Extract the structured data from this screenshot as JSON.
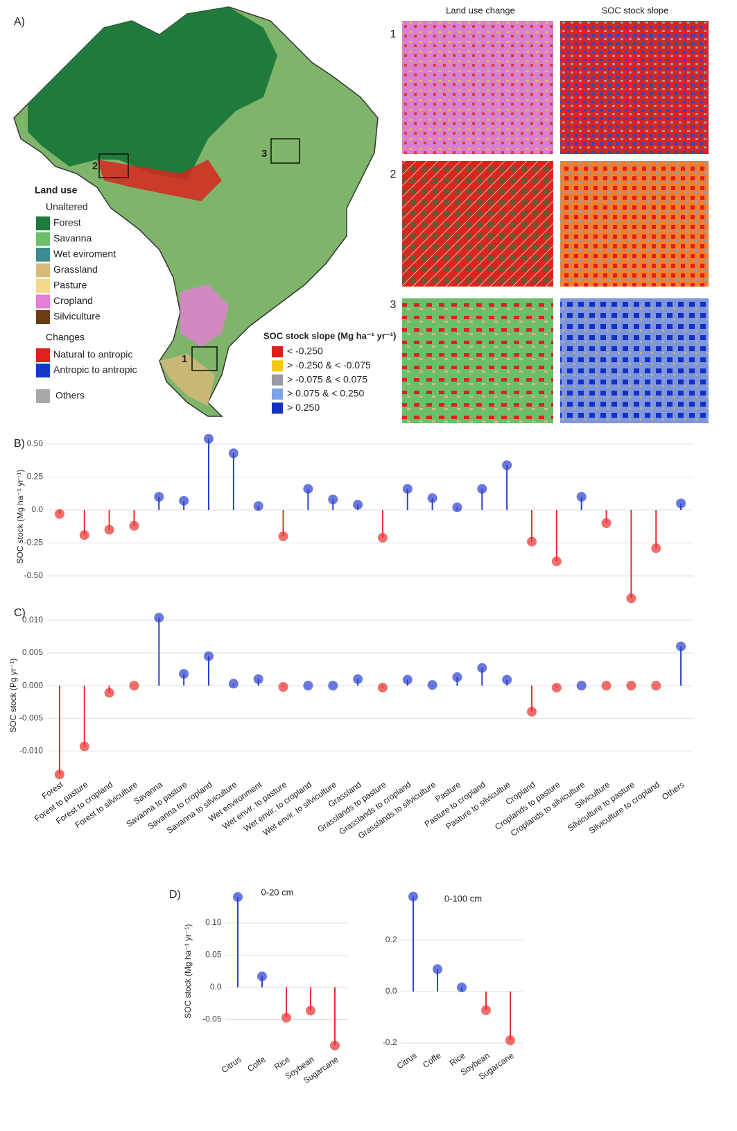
{
  "panel_a": {
    "label": "A)",
    "column_headers": [
      "Land use change",
      "SOC stock slope"
    ],
    "row_numbers": [
      "1",
      "2",
      "3"
    ],
    "map_boxes": [
      "1",
      "2",
      "3"
    ],
    "land_use_title": "Land use",
    "unaltered_title": "Unaltered",
    "unaltered": [
      {
        "label": "Forest",
        "color": "#1f7a3c"
      },
      {
        "label": "Savanna",
        "color": "#6cbf6a"
      },
      {
        "label": "Wet eviroment",
        "color": "#3b8a94"
      },
      {
        "label": "Grassland",
        "color": "#d9b97a"
      },
      {
        "label": "Pasture",
        "color": "#f4d98c"
      },
      {
        "label": "Cropland",
        "color": "#e67fd6"
      },
      {
        "label": "Silviculture",
        "color": "#6b3e12"
      }
    ],
    "changes_title": "Changes",
    "changes": [
      {
        "label": "Natural to antropic",
        "color": "#e01f1f"
      },
      {
        "label": "Antropic to antropic",
        "color": "#1537c8"
      }
    ],
    "others": {
      "label": "Others",
      "color": "#a9a9ad"
    },
    "slope_title": "SOC stock slope (Mg ha⁻¹ yr⁻¹)",
    "slope_classes": [
      {
        "label": "< -0.250",
        "color": "#e51b1b"
      },
      {
        "label": "> -0.250 & < -0.075",
        "color": "#f5c710"
      },
      {
        "label": "> -0.075 & < 0.075",
        "color": "#9a9aa4"
      },
      {
        "label": " > 0.075 & < 0.250",
        "color": "#7ea2e8"
      },
      {
        "label": "> 0.250",
        "color": "#1430c4"
      }
    ]
  },
  "chart_data": [
    {
      "type": "lollipop",
      "panel_label": "B)",
      "y_label": "SOC stock (Mg ha⁻¹ yr⁻¹)",
      "categories": [
        "Forest",
        "Forest to pasture",
        "Forest to cropland",
        "Forest to silviculture",
        "Savanna",
        "Savanna to pasture",
        "Savanna to cropland",
        "Savanna to silviculture",
        "Wet environment",
        "Wet envir. to pasture",
        "Wet envir. to cropland",
        "Wet envir. to silviculture",
        "Grassland",
        "Grasslands to pasture",
        "Grasslands to cropland",
        "Grasslands to silviculture",
        "Pasture",
        "Pasture to cropland",
        "Pasture to silvicultue",
        "Cropland",
        "Croplands to pasture",
        "Croplands to silviculture",
        "Silviculture",
        "Silviculture to pasture",
        "Silviculture to cropland",
        "Others"
      ],
      "show_categories": false,
      "values": [
        -0.03,
        -0.19,
        -0.15,
        -0.12,
        0.1,
        0.07,
        0.54,
        0.43,
        0.03,
        -0.2,
        0.16,
        0.08,
        0.04,
        -0.21,
        0.16,
        0.09,
        0.02,
        0.16,
        0.34,
        -0.24,
        -0.39,
        0.1,
        -0.1,
        -0.67,
        -0.29,
        0.05
      ],
      "colors": [
        "#e8302e",
        "#e8302e",
        "#e8302e",
        "#e8302e",
        "#2b3fd0",
        "#2b3fd0",
        "#2b3fd0",
        "#2b3fd0",
        "#2b3fd0",
        "#e8302e",
        "#2b3fd0",
        "#2b3fd0",
        "#2b3fd0",
        "#e8302e",
        "#2b3fd0",
        "#2b3fd0",
        "#2b3fd0",
        "#2b3fd0",
        "#2b3fd0",
        "#e8302e",
        "#e8302e",
        "#2b3fd0",
        "#e8302e",
        "#e8302e",
        "#e8302e",
        "#2b3fd0"
      ],
      "ylim": [
        -0.7,
        0.6
      ],
      "yticks": [
        {
          "value": -0.5,
          "label": "-0.50"
        },
        -0.25,
        {
          "value": 0,
          "label": "0.0"
        },
        0.25,
        {
          "value": 0.5,
          "label": "0.50"
        }
      ],
      "grid": true
    },
    {
      "type": "lollipop",
      "panel_label": "C)",
      "y_label": "SOC stock (Pg yr⁻¹)",
      "categories": [
        "Forest",
        "Forest to pasture",
        "Forest to cropland",
        "Forest to silviculture",
        "Savanna",
        "Savanna to pasture",
        "Savanna to cropland",
        "Savanna to silviculture",
        "Wet environment",
        "Wet envir. to pasture",
        "Wet envir. to cropland",
        "Wet envir. to silviculture",
        "Grassland",
        "Grasslands to pasture",
        "Grasslands to cropland",
        "Grasslands to silviculture",
        "Pasture",
        "Pasture to cropland",
        "Pasture to silvicultue",
        "Cropland",
        "Croplands to pasture",
        "Croplands to silviculture",
        "Silviculture",
        "Silviculture to pasture",
        "Silviculture to cropland",
        "Others"
      ],
      "show_categories": true,
      "values": [
        -0.0136,
        -0.0093,
        -0.0011,
        0,
        0.0104,
        0.0018,
        0.0045,
        0.0003,
        0.001,
        -0.0002,
        0,
        0,
        0.001,
        -0.0003,
        0.0009,
        0.0001,
        0.0013,
        0.0027,
        0.0009,
        -0.004,
        -0.0003,
        0,
        0,
        0,
        0,
        0.006
      ],
      "colors": [
        "#e8302e",
        "#e8302e",
        "#e8302e",
        "#e8302e",
        "#2b3fd0",
        "#2b3fd0",
        "#2b3fd0",
        "#2b3fd0",
        "#2b3fd0",
        "#e8302e",
        "#2b3fd0",
        "#2b3fd0",
        "#2b3fd0",
        "#e8302e",
        "#2b3fd0",
        "#2b3fd0",
        "#2b3fd0",
        "#2b3fd0",
        "#2b3fd0",
        "#e8302e",
        "#e8302e",
        "#2b3fd0",
        "#e8302e",
        "#e8302e",
        "#e8302e",
        "#2b3fd0"
      ],
      "ylim": [
        -0.014,
        0.011
      ],
      "yticks": [
        {
          "value": -0.01,
          "label": "-0.010"
        },
        -0.005,
        {
          "value": 0,
          "label": "0.000"
        },
        0.005,
        {
          "value": 0.01,
          "label": "0.010"
        }
      ],
      "grid": true
    },
    {
      "type": "lollipop",
      "panel_label": "D)",
      "title": "0-20 cm",
      "y_label": "SOC stock (Mg ha⁻¹ yr⁻¹)",
      "categories": [
        "Citrus",
        "Coffe",
        "Rice",
        "Soybean",
        "Sugarcane"
      ],
      "show_categories": true,
      "values": [
        0.14,
        0.017,
        -0.047,
        -0.036,
        -0.09
      ],
      "colors": [
        "#2b3fd0",
        "#2b3fd0",
        "#e8302e",
        "#e8302e",
        "#e8302e"
      ],
      "ylim": [
        -0.1,
        0.15
      ],
      "yticks": [
        -0.05,
        {
          "value": 0,
          "label": "0.0"
        },
        0.05,
        {
          "value": 0.1,
          "label": "0.10"
        }
      ],
      "grid": true
    },
    {
      "type": "lollipop",
      "title": "0-100 cm",
      "categories": [
        "Citrus",
        "Coffe",
        "Rice",
        "Soybean",
        "Sugarcane"
      ],
      "show_categories": true,
      "values": [
        0.37,
        0.087,
        0.016,
        -0.073,
        -0.19
      ],
      "colors": [
        "#2b3fd0",
        "#2b3fd0",
        "#2b3fd0",
        "#e8302e",
        "#e8302e"
      ],
      "ylim": [
        -0.22,
        0.4
      ],
      "yticks": [
        -0.2,
        {
          "value": 0,
          "label": "0.0"
        },
        0.2
      ],
      "grid": true
    }
  ]
}
